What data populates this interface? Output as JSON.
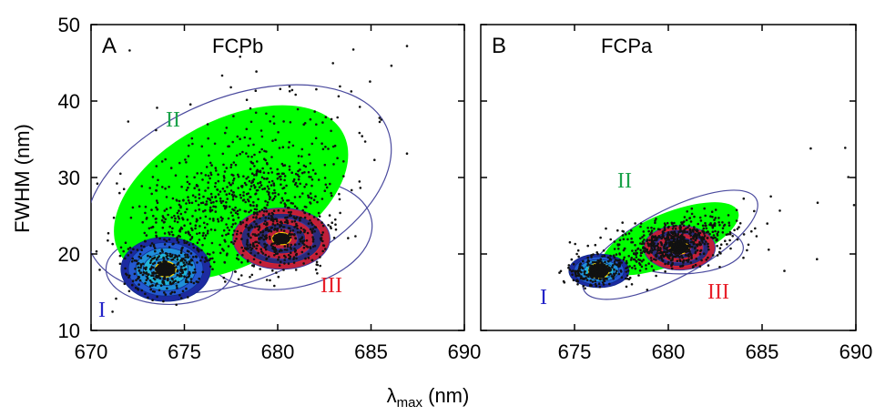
{
  "chart_data": {
    "type": "scatter",
    "ylabel": "FWHM (nm)",
    "xlabel_main": "λ",
    "xlabel_sub": "max",
    "xlabel_unit": " (nm)",
    "ylim": [
      10,
      50
    ],
    "y_ticks": [
      "10",
      "20",
      "30",
      "40",
      "50"
    ],
    "colors": {
      "I": "#2424c8",
      "II": "#1aa24a",
      "III": "#e8202a",
      "fill_II": "#00ff00",
      "contour_outer": "#4a4a9e",
      "points": "#111111"
    },
    "panels": [
      {
        "letter": "A",
        "name": "FCPb",
        "xlim": [
          670,
          690
        ],
        "x_ticks": [
          "670",
          "675",
          "680",
          "685",
          "690"
        ],
        "clusters": [
          {
            "label": "I",
            "center": [
              674.0,
              18.0
            ]
          },
          {
            "label": "II",
            "center": [
              677.5,
              28.0
            ]
          },
          {
            "label": "III",
            "center": [
              680.2,
              22.0
            ]
          }
        ]
      },
      {
        "letter": "B",
        "name": "FCPa",
        "xlim": [
          670,
          690
        ],
        "x_ticks": [
          "675",
          "680",
          "685",
          "690"
        ],
        "clusters": [
          {
            "label": "I",
            "center": [
              676.3,
              17.8
            ]
          },
          {
            "label": "II",
            "center": [
              679.5,
              22.0
            ]
          },
          {
            "label": "III",
            "center": [
              680.6,
              20.8
            ]
          }
        ]
      }
    ]
  }
}
